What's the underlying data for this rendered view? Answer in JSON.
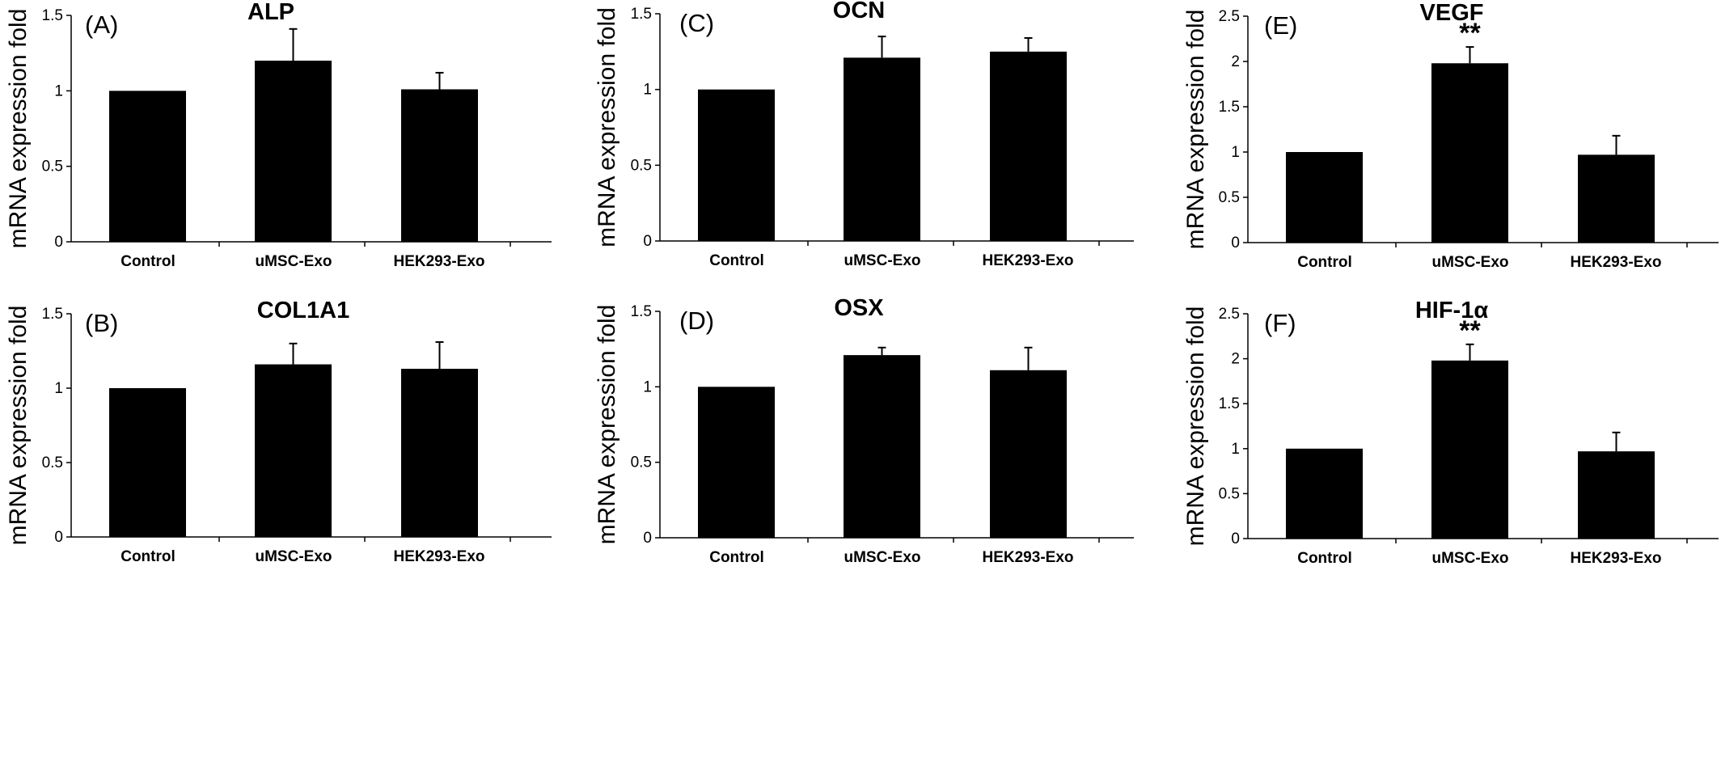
{
  "chart_data": [
    {
      "type": "bar",
      "panel_label": "(A)",
      "title": "ALP",
      "ylabel": "mRNA expression fold",
      "categories": [
        "Control",
        "uMSC-Exo",
        "HEK293-Exo"
      ],
      "values": [
        1.0,
        1.2,
        1.01
      ],
      "errors": [
        0,
        0.21,
        0.11
      ],
      "significance": [
        "",
        "",
        ""
      ],
      "yticks": [
        "0",
        "0.5",
        "1",
        "1.5"
      ],
      "ylim": [
        0,
        1.5
      ],
      "color": "#000000"
    },
    {
      "type": "bar",
      "panel_label": "(B)",
      "title": "COL1A1",
      "ylabel": "mRNA expression fold",
      "categories": [
        "Control",
        "uMSC-Exo",
        "HEK293-Exo"
      ],
      "values": [
        1.0,
        1.16,
        1.13
      ],
      "errors": [
        0,
        0.14,
        0.18
      ],
      "significance": [
        "",
        "",
        ""
      ],
      "yticks": [
        "0",
        "0.5",
        "1",
        "1.5"
      ],
      "ylim": [
        0,
        1.5
      ],
      "color": "#000000"
    },
    {
      "type": "bar",
      "panel_label": "(C)",
      "title": "OCN",
      "ylabel": "mRNA expression fold",
      "categories": [
        "Control",
        "uMSC-Exo",
        "HEK293-Exo"
      ],
      "values": [
        1.0,
        1.21,
        1.25
      ],
      "errors": [
        0,
        0.14,
        0.09
      ],
      "significance": [
        "",
        "",
        ""
      ],
      "yticks": [
        "0",
        "0.5",
        "1",
        "1.5"
      ],
      "ylim": [
        0,
        1.5
      ],
      "color": "#000000"
    },
    {
      "type": "bar",
      "panel_label": "(D)",
      "title": "OSX",
      "ylabel": "mRNA expression fold",
      "categories": [
        "Control",
        "uMSC-Exo",
        "HEK293-Exo"
      ],
      "values": [
        1.0,
        1.21,
        1.11
      ],
      "errors": [
        0,
        0.05,
        0.15
      ],
      "significance": [
        "",
        "",
        ""
      ],
      "yticks": [
        "0",
        "0.5",
        "1",
        "1.5"
      ],
      "ylim": [
        0,
        1.5
      ],
      "color": "#000000"
    },
    {
      "type": "bar",
      "panel_label": "(E)",
      "title": "VEGF",
      "ylabel": "mRNA expression fold",
      "categories": [
        "Control",
        "uMSC-Exo",
        "HEK293-Exo"
      ],
      "values": [
        1.0,
        1.98,
        0.97
      ],
      "errors": [
        0,
        0.18,
        0.21
      ],
      "significance": [
        "",
        "**",
        ""
      ],
      "yticks": [
        "0",
        "0.5",
        "1",
        "1.5",
        "2",
        "2.5"
      ],
      "ylim": [
        0,
        2.5
      ],
      "color": "#000000"
    },
    {
      "type": "bar",
      "panel_label": "(F)",
      "title": "HIF-1α",
      "ylabel": "mRNA expression fold",
      "categories": [
        "Control",
        "uMSC-Exo",
        "HEK293-Exo"
      ],
      "values": [
        1.0,
        1.98,
        0.97
      ],
      "errors": [
        0,
        0.18,
        0.21
      ],
      "significance": [
        "",
        "**",
        ""
      ],
      "yticks": [
        "0",
        "0.5",
        "1",
        "1.5",
        "2",
        "2.5"
      ],
      "ylim": [
        0,
        2.5
      ],
      "color": "#000000"
    }
  ]
}
